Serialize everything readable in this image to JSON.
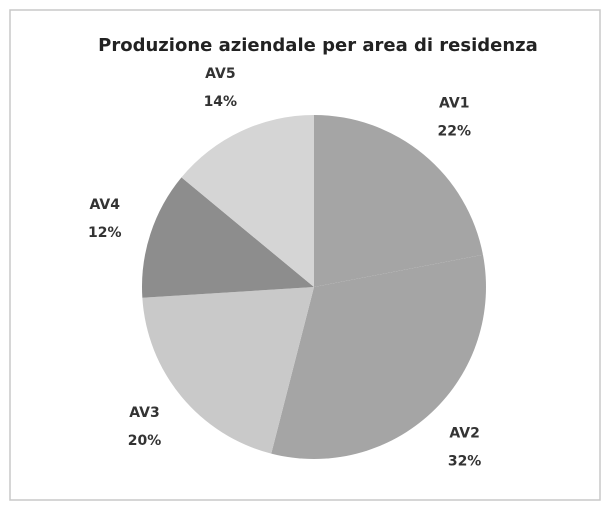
{
  "chart_data": {
    "type": "pie",
    "title": "Produzione aziendale per area di residenza",
    "categories": [
      "AV1",
      "AV2",
      "AV3",
      "AV4",
      "AV5"
    ],
    "values": [
      22,
      32,
      20,
      12,
      14
    ],
    "value_labels": [
      "22%",
      "32%",
      "20%",
      "12%",
      "14%"
    ],
    "colors": [
      "#a5a5a5",
      "#a5a5a5",
      "#c9c9c9",
      "#8d8d8d",
      "#d5d5d5"
    ]
  }
}
